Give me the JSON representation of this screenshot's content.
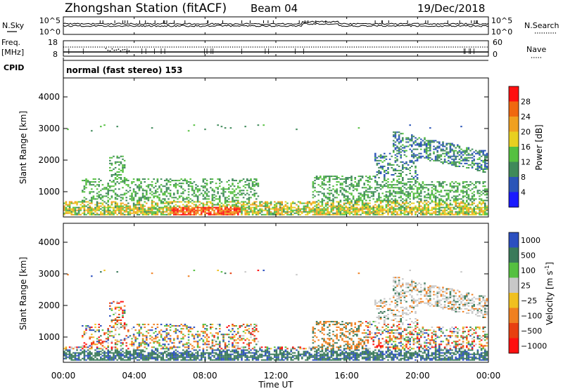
{
  "header": {
    "station": "Zhongshan Station (fitACF)",
    "beam": "Beam 04",
    "date": "19/Dec/2018"
  },
  "panels": {
    "nsky_label": "N.Sky",
    "nsky_ticks": [
      "10^5",
      "10^0"
    ],
    "nsearch_label": "N.Search",
    "nsearch_ticks": [
      "10^5",
      "10^0"
    ],
    "freq_label_1": "Freq.",
    "freq_label_2": "[MHz]",
    "freq_ticks": [
      "18",
      "8"
    ],
    "nave_label": "Nave",
    "nave_ticks": [
      "60",
      "0"
    ],
    "cpid_label": "CPID",
    "cpid_text": "normal (fast stereo) 153"
  },
  "colors": {
    "power": [
      "#1a1aff",
      "#2b55b8",
      "#3f8a5a",
      "#55c040",
      "#e8d020",
      "#f0a020",
      "#f06810",
      "#ff1010"
    ],
    "velocity": [
      "#2b4fc0",
      "#3a7a5a",
      "#55c040",
      "#c8c8c8",
      "#f0c020",
      "#f08020",
      "#e84010",
      "#ff1010"
    ]
  },
  "chart_data": [
    {
      "type": "heatmap",
      "ylabel": "Slant Range [km]",
      "yticks": [
        "1000",
        "2000",
        "3000",
        "4000"
      ],
      "ylim": [
        200,
        4600
      ],
      "colorbar_label": "Power [dB]",
      "colorbar_ticks": [
        "4",
        "8",
        "12",
        "16",
        "20",
        "24",
        "28"
      ],
      "colorbar_range": [
        0,
        32
      ]
    },
    {
      "type": "heatmap",
      "xlabel": "Time UT",
      "xticks": [
        "00:00",
        "04:00",
        "08:00",
        "12:00",
        "16:00",
        "20:00",
        "00:00"
      ],
      "xlim": [
        0,
        24
      ],
      "ylabel": "Slant Range [km]",
      "yticks": [
        "1000",
        "2000",
        "3000",
        "4000"
      ],
      "ylim": [
        200,
        4600
      ],
      "colorbar_label": "Velocity [m s^-1]",
      "colorbar_ticks": [
        "1000",
        "500",
        "100",
        "25",
        "−25",
        "−100",
        "−500",
        "−1000"
      ]
    }
  ]
}
